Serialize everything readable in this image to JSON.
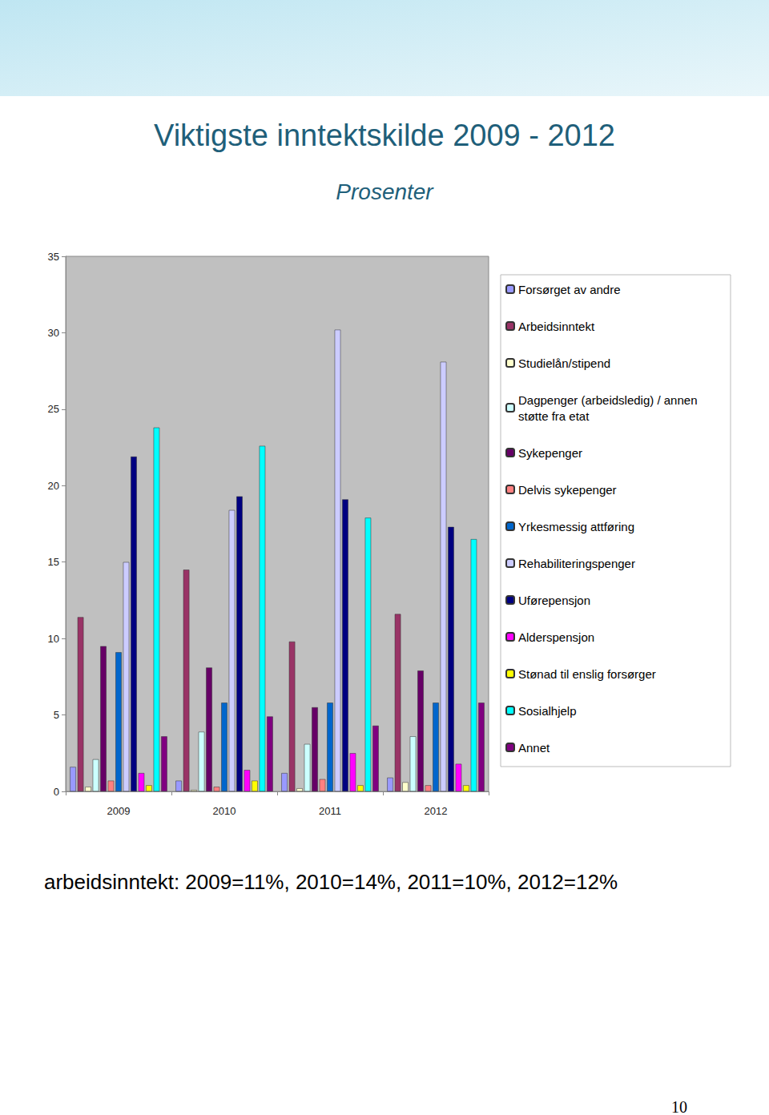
{
  "chart_data": {
    "type": "bar",
    "title": "Viktigste inntektskilde 2009 - 2012",
    "subtitle": "Prosenter",
    "annotations": [
      "arbeidsinntekt: 2009=11%, 2010=14%, 2011=10%, 2012=12%",
      "10"
    ],
    "categories": [
      "2009",
      "2010",
      "2011",
      "2012"
    ],
    "series": [
      {
        "name": "Forsørget av andre",
        "color": "#9999ff",
        "values": [
          1.6,
          0.7,
          1.2,
          0.9
        ]
      },
      {
        "name": "Arbeidsinntekt",
        "color": "#993366",
        "values": [
          11.4,
          14.5,
          9.8,
          11.6
        ]
      },
      {
        "name": "Studielån/stipend",
        "color": "#ffffcc",
        "values": [
          0.3,
          0.1,
          0.2,
          0.6
        ]
      },
      {
        "name": "Dagpenger (arbeidsledig) / annen støtte fra etat",
        "color": "#ccffff",
        "values": [
          2.1,
          3.9,
          3.1,
          3.6
        ]
      },
      {
        "name": "Sykepenger",
        "color": "#660066",
        "values": [
          9.5,
          8.1,
          5.5,
          7.9
        ]
      },
      {
        "name": "Delvis sykepenger",
        "color": "#ff8080",
        "values": [
          0.7,
          0.3,
          0.8,
          0.4
        ]
      },
      {
        "name": "Yrkesmessig attføring",
        "color": "#0066cc",
        "values": [
          9.1,
          5.8,
          5.8,
          5.8
        ]
      },
      {
        "name": "Rehabiliteringspenger",
        "color": "#ccccff",
        "values": [
          15.0,
          18.4,
          30.2,
          28.1
        ]
      },
      {
        "name": "Uførepensjon",
        "color": "#000080",
        "values": [
          21.9,
          19.3,
          19.1,
          17.3
        ]
      },
      {
        "name": "Alderspensjon",
        "color": "#ff00ff",
        "values": [
          1.2,
          1.4,
          2.5,
          1.8
        ]
      },
      {
        "name": "Stønad til enslig forsørger",
        "color": "#ffff00",
        "values": [
          0.4,
          0.7,
          0.4,
          0.4
        ]
      },
      {
        "name": "Sosialhjelp",
        "color": "#00ffff",
        "values": [
          23.8,
          22.6,
          17.9,
          16.5
        ]
      },
      {
        "name": "Annet",
        "color": "#800080",
        "values": [
          3.6,
          4.9,
          4.3,
          5.8
        ]
      }
    ],
    "ylim": [
      0,
      35
    ],
    "yticks": [
      0,
      5,
      10,
      15,
      20,
      25,
      30,
      35
    ],
    "grid": false,
    "legend": "right"
  }
}
